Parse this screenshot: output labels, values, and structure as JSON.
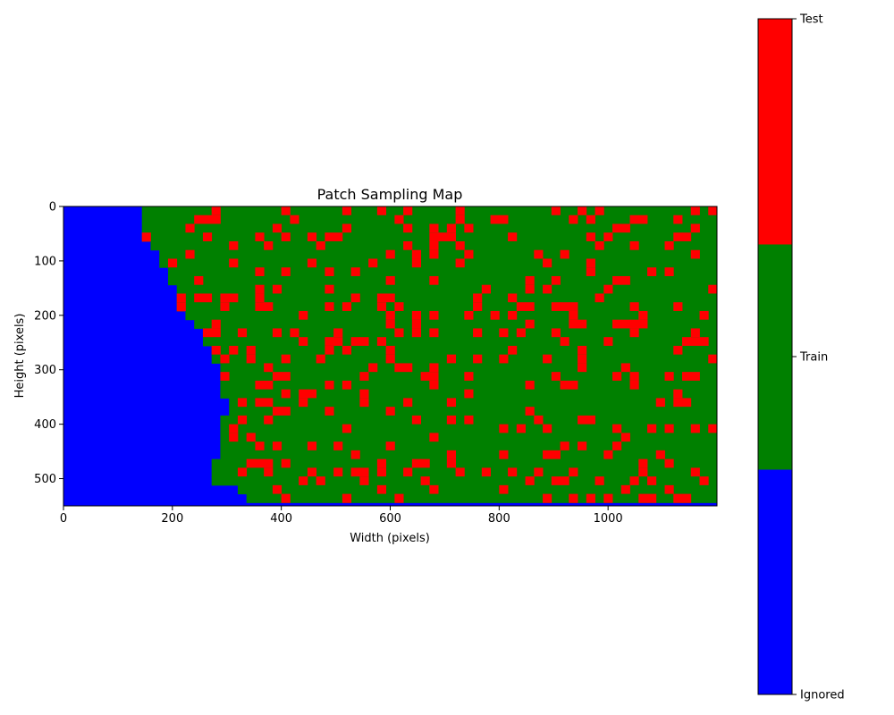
{
  "chart_data": {
    "type": "heatmap",
    "title": "Patch Sampling Map",
    "xlabel": "Width (pixels)",
    "ylabel": "Height (pixels)",
    "xlim": [
      0,
      1200
    ],
    "ylim": [
      550,
      0
    ],
    "x_ticks": [
      "0",
      "200",
      "400",
      "600",
      "800",
      "1000"
    ],
    "x_tick_values": [
      0,
      200,
      400,
      600,
      800,
      1000
    ],
    "y_ticks": [
      "0",
      "100",
      "200",
      "300",
      "400",
      "500"
    ],
    "y_tick_values": [
      0,
      100,
      200,
      300,
      400,
      500
    ],
    "grid": false,
    "patch_size": 16,
    "categories": [
      {
        "value": 0,
        "label": "Ignored",
        "color": "#0000ff"
      },
      {
        "value": 1,
        "label": "Train",
        "color": "#008000"
      },
      {
        "value": 2,
        "label": "Test",
        "color": "#ff0000"
      }
    ],
    "test_fraction_approx": 0.15,
    "ignored_boundary_x_by_y": [
      [
        0,
        144
      ],
      [
        32,
        144
      ],
      [
        48,
        144
      ],
      [
        64,
        160
      ],
      [
        80,
        176
      ],
      [
        96,
        176
      ],
      [
        112,
        192
      ],
      [
        128,
        192
      ],
      [
        144,
        208
      ],
      [
        160,
        208
      ],
      [
        176,
        208
      ],
      [
        192,
        224
      ],
      [
        208,
        240
      ],
      [
        224,
        256
      ],
      [
        240,
        256
      ],
      [
        256,
        272
      ],
      [
        272,
        272
      ],
      [
        288,
        288
      ],
      [
        304,
        288
      ],
      [
        320,
        288
      ],
      [
        336,
        288
      ],
      [
        352,
        304
      ],
      [
        368,
        304
      ],
      [
        384,
        288
      ],
      [
        400,
        288
      ],
      [
        416,
        288
      ],
      [
        432,
        288
      ],
      [
        448,
        288
      ],
      [
        464,
        272
      ],
      [
        480,
        272
      ],
      [
        496,
        272
      ],
      [
        512,
        320
      ],
      [
        528,
        336
      ],
      [
        544,
        368
      ]
    ],
    "bottom_ignored_rows_from_y": 544,
    "colorbar": {
      "ticks": [
        "Ignored",
        "Train",
        "Test"
      ],
      "tick_values": [
        0,
        1,
        2
      ]
    }
  }
}
